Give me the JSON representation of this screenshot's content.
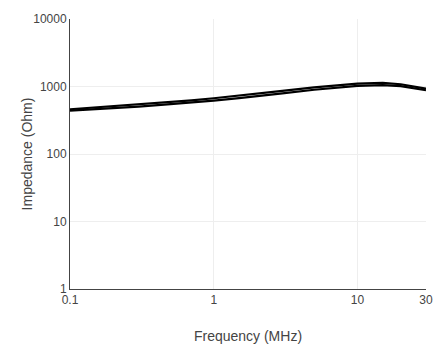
{
  "chart_data": {
    "type": "line",
    "xlabel": "Frequency (MHz)",
    "ylabel": "Impedance (Ohm)",
    "x": [
      0.1,
      0.2,
      0.3,
      0.5,
      0.7,
      1.0,
      1.5,
      2.0,
      3.0,
      5.0,
      7.0,
      10.0,
      15.0,
      20.0,
      30.0
    ],
    "series": [
      {
        "color": "#000000",
        "values": [
          460,
          510,
          545,
          590,
          625,
          670,
          730,
          780,
          860,
          970,
          1040,
          1100,
          1130,
          1080,
          930
        ]
      },
      {
        "color": "#000000",
        "values": [
          440,
          475,
          505,
          548,
          578,
          618,
          672,
          712,
          790,
          895,
          965,
          1020,
          1050,
          1015,
          880
        ]
      }
    ],
    "xlim": [
      0.1,
      30
    ],
    "ylim": [
      1,
      10000
    ],
    "xticks": [
      0.1,
      1,
      10,
      30
    ],
    "yticks": [
      1,
      10,
      100,
      1000,
      10000
    ],
    "log": true,
    "grid": true
  }
}
